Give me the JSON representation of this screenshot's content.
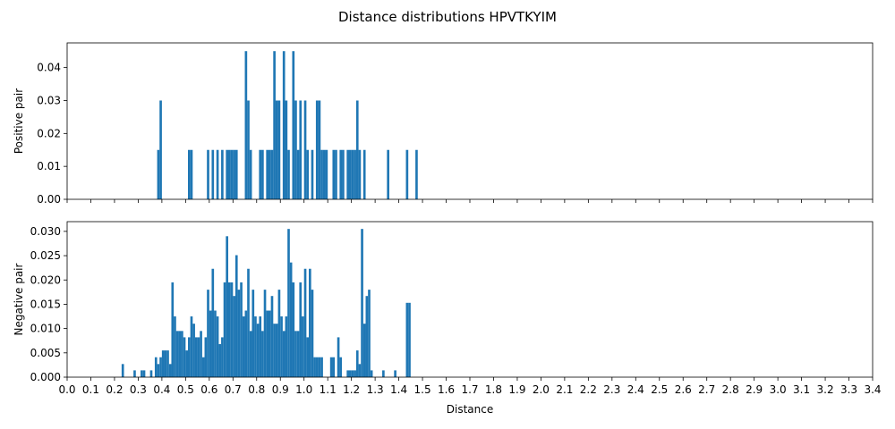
{
  "chart_data": {
    "type": "bar",
    "title": "Distance distributions HPVTKYIM",
    "xlabel": "Distance",
    "xlim": [
      0.0,
      3.4
    ],
    "xticks": [
      "0.0",
      "0.1",
      "0.2",
      "0.3",
      "0.4",
      "0.5",
      "0.6",
      "0.7",
      "0.8",
      "0.9",
      "1.0",
      "1.1",
      "1.2",
      "1.3",
      "1.4",
      "1.5",
      "1.6",
      "1.7",
      "1.8",
      "1.9",
      "2.0",
      "2.1",
      "2.2",
      "2.3",
      "2.4",
      "2.5",
      "2.6",
      "2.7",
      "2.8",
      "2.9",
      "3.0",
      "3.1",
      "3.2",
      "3.3",
      "3.4"
    ],
    "bin_width": 0.01,
    "color": "#1f77b4",
    "grid": false,
    "subplots": [
      {
        "ylabel": "Positive pair",
        "ylim": [
          0,
          0.0475
        ],
        "yticks": [
          "0.00",
          "0.01",
          "0.02",
          "0.03",
          "0.04"
        ],
        "bins": [
          [
            0.38,
            0.015
          ],
          [
            0.39,
            0.03
          ],
          [
            0.51,
            0.015
          ],
          [
            0.52,
            0.015
          ],
          [
            0.59,
            0.015
          ],
          [
            0.61,
            0.015
          ],
          [
            0.63,
            0.015
          ],
          [
            0.65,
            0.015
          ],
          [
            0.67,
            0.015
          ],
          [
            0.68,
            0.015
          ],
          [
            0.69,
            0.015
          ],
          [
            0.7,
            0.015
          ],
          [
            0.71,
            0.015
          ],
          [
            0.75,
            0.045
          ],
          [
            0.76,
            0.03
          ],
          [
            0.77,
            0.015
          ],
          [
            0.81,
            0.015
          ],
          [
            0.82,
            0.015
          ],
          [
            0.84,
            0.015
          ],
          [
            0.85,
            0.015
          ],
          [
            0.86,
            0.015
          ],
          [
            0.87,
            0.045
          ],
          [
            0.88,
            0.03
          ],
          [
            0.89,
            0.03
          ],
          [
            0.91,
            0.045
          ],
          [
            0.92,
            0.03
          ],
          [
            0.93,
            0.015
          ],
          [
            0.95,
            0.045
          ],
          [
            0.96,
            0.03
          ],
          [
            0.97,
            0.015
          ],
          [
            0.98,
            0.03
          ],
          [
            1.0,
            0.03
          ],
          [
            1.01,
            0.015
          ],
          [
            1.03,
            0.015
          ],
          [
            1.05,
            0.03
          ],
          [
            1.06,
            0.03
          ],
          [
            1.07,
            0.015
          ],
          [
            1.08,
            0.015
          ],
          [
            1.09,
            0.015
          ],
          [
            1.12,
            0.015
          ],
          [
            1.13,
            0.015
          ],
          [
            1.15,
            0.015
          ],
          [
            1.16,
            0.015
          ],
          [
            1.18,
            0.015
          ],
          [
            1.19,
            0.015
          ],
          [
            1.2,
            0.015
          ],
          [
            1.21,
            0.015
          ],
          [
            1.22,
            0.03
          ],
          [
            1.23,
            0.015
          ],
          [
            1.25,
            0.015
          ],
          [
            1.35,
            0.015
          ],
          [
            1.43,
            0.015
          ],
          [
            1.47,
            0.015
          ]
        ]
      },
      {
        "ylabel": "Negative pair",
        "ylim": [
          0,
          0.032
        ],
        "yticks": [
          "0.000",
          "0.005",
          "0.010",
          "0.015",
          "0.020",
          "0.025",
          "0.030"
        ],
        "bins": [
          [
            0.23,
            0.0027
          ],
          [
            0.28,
            0.0014
          ],
          [
            0.31,
            0.0014
          ],
          [
            0.32,
            0.0014
          ],
          [
            0.35,
            0.0014
          ],
          [
            0.37,
            0.0041
          ],
          [
            0.38,
            0.0027
          ],
          [
            0.39,
            0.0041
          ],
          [
            0.4,
            0.0055
          ],
          [
            0.41,
            0.0055
          ],
          [
            0.42,
            0.0055
          ],
          [
            0.43,
            0.0027
          ],
          [
            0.44,
            0.0195
          ],
          [
            0.45,
            0.0125
          ],
          [
            0.46,
            0.0095
          ],
          [
            0.47,
            0.0095
          ],
          [
            0.48,
            0.0095
          ],
          [
            0.49,
            0.0082
          ],
          [
            0.5,
            0.0055
          ],
          [
            0.51,
            0.0082
          ],
          [
            0.52,
            0.0125
          ],
          [
            0.53,
            0.011
          ],
          [
            0.54,
            0.0082
          ],
          [
            0.55,
            0.0082
          ],
          [
            0.56,
            0.0095
          ],
          [
            0.57,
            0.0041
          ],
          [
            0.58,
            0.0082
          ],
          [
            0.59,
            0.018
          ],
          [
            0.6,
            0.0137
          ],
          [
            0.61,
            0.0223
          ],
          [
            0.62,
            0.0137
          ],
          [
            0.63,
            0.0125
          ],
          [
            0.64,
            0.0068
          ],
          [
            0.65,
            0.0082
          ],
          [
            0.66,
            0.0195
          ],
          [
            0.67,
            0.029
          ],
          [
            0.68,
            0.0195
          ],
          [
            0.69,
            0.0195
          ],
          [
            0.7,
            0.0167
          ],
          [
            0.71,
            0.0251
          ],
          [
            0.72,
            0.018
          ],
          [
            0.73,
            0.0195
          ],
          [
            0.74,
            0.0125
          ],
          [
            0.75,
            0.0137
          ],
          [
            0.76,
            0.0223
          ],
          [
            0.77,
            0.0095
          ],
          [
            0.78,
            0.018
          ],
          [
            0.79,
            0.0125
          ],
          [
            0.8,
            0.011
          ],
          [
            0.81,
            0.0125
          ],
          [
            0.82,
            0.0095
          ],
          [
            0.83,
            0.018
          ],
          [
            0.84,
            0.0137
          ],
          [
            0.85,
            0.0137
          ],
          [
            0.86,
            0.0167
          ],
          [
            0.87,
            0.011
          ],
          [
            0.88,
            0.011
          ],
          [
            0.89,
            0.018
          ],
          [
            0.9,
            0.0125
          ],
          [
            0.91,
            0.0095
          ],
          [
            0.92,
            0.0125
          ],
          [
            0.93,
            0.0305
          ],
          [
            0.94,
            0.0236
          ],
          [
            0.95,
            0.0195
          ],
          [
            0.96,
            0.0095
          ],
          [
            0.97,
            0.0095
          ],
          [
            0.98,
            0.0195
          ],
          [
            0.99,
            0.0125
          ],
          [
            1.0,
            0.0223
          ],
          [
            1.01,
            0.0082
          ],
          [
            1.02,
            0.0223
          ],
          [
            1.03,
            0.018
          ],
          [
            1.04,
            0.0041
          ],
          [
            1.05,
            0.0041
          ],
          [
            1.06,
            0.0041
          ],
          [
            1.07,
            0.0041
          ],
          [
            1.11,
            0.0041
          ],
          [
            1.12,
            0.0041
          ],
          [
            1.14,
            0.0082
          ],
          [
            1.15,
            0.0041
          ],
          [
            1.18,
            0.0014
          ],
          [
            1.19,
            0.0014
          ],
          [
            1.2,
            0.0014
          ],
          [
            1.21,
            0.0014
          ],
          [
            1.22,
            0.0055
          ],
          [
            1.23,
            0.0027
          ],
          [
            1.24,
            0.0305
          ],
          [
            1.25,
            0.011
          ],
          [
            1.26,
            0.0167
          ],
          [
            1.27,
            0.018
          ],
          [
            1.28,
            0.0014
          ],
          [
            1.33,
            0.0014
          ],
          [
            1.38,
            0.0014
          ],
          [
            1.43,
            0.0153
          ],
          [
            1.44,
            0.0153
          ]
        ]
      }
    ]
  }
}
